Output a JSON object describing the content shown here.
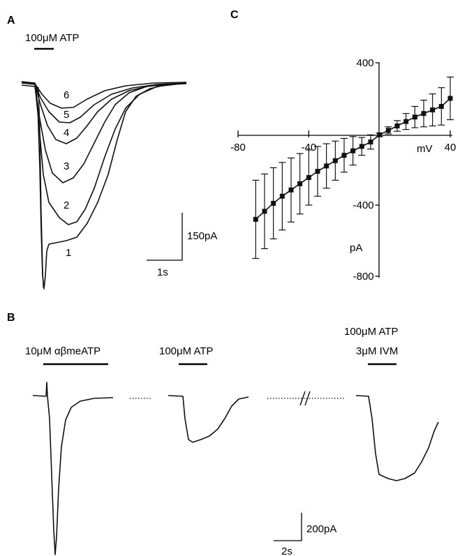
{
  "panels": {
    "a": {
      "label": "A",
      "drug_label": "100μM ATP",
      "trace_labels": [
        "1",
        "2",
        "3",
        "4",
        "5",
        "6"
      ],
      "scale_y": "150pA",
      "scale_x": "1s"
    },
    "b": {
      "label": "B",
      "drug_1": "10μM αβmeATP",
      "drug_2": "100μM ATP",
      "drug_3_line1": "100μM ATP",
      "drug_3_line2": "3μM IVM",
      "scale_y": "200pA",
      "scale_x": "2s"
    },
    "c": {
      "label": "C"
    }
  },
  "chart_data": [
    {
      "type": "line",
      "panel": "C",
      "xlabel": "mV",
      "ylabel": "pA",
      "xlim": [
        -80,
        40
      ],
      "ylim": [
        -800,
        400
      ],
      "xticks": [
        "-80",
        "-40",
        "40"
      ],
      "yticks": [
        "400",
        "-400",
        "-800"
      ],
      "series": [
        {
          "x": [
            -70,
            -65,
            -60,
            -55,
            -50,
            -45,
            -40,
            -35,
            -30,
            -25,
            -20,
            -15,
            -10,
            -5,
            0,
            5,
            10,
            15,
            20,
            25,
            30,
            35,
            40
          ],
          "y": [
            -480,
            -435,
            -390,
            -350,
            -315,
            -280,
            -245,
            -210,
            -180,
            -150,
            -120,
            -95,
            -70,
            -45,
            -5,
            20,
            45,
            70,
            95,
            115,
            135,
            155,
            200
          ],
          "error": [
            220,
            210,
            200,
            190,
            180,
            170,
            155,
            140,
            125,
            110,
            95,
            80,
            50,
            40,
            10,
            20,
            30,
            45,
            60,
            75,
            90,
            105,
            120
          ]
        }
      ]
    }
  ]
}
